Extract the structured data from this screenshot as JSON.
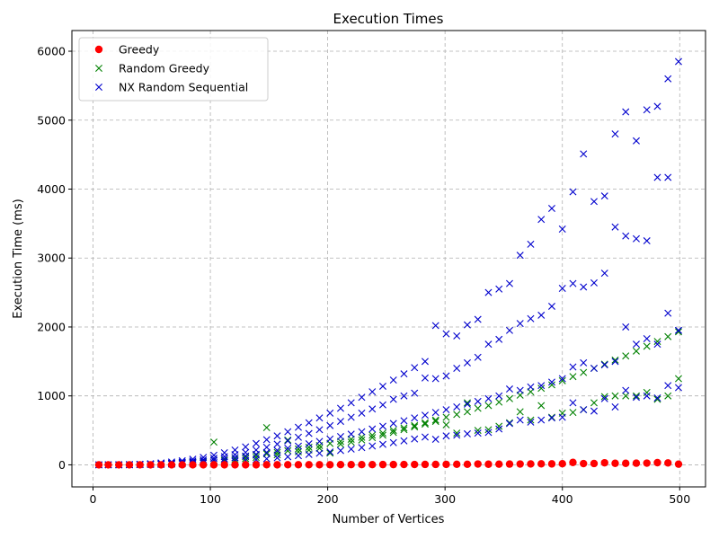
{
  "chart_data": {
    "type": "scatter",
    "title": "Execution Times",
    "xlabel": "Number of Vertices",
    "ylabel": "Execution Time (ms)",
    "xlim": [
      -18,
      522
    ],
    "ylim": [
      -320,
      6300
    ],
    "xticks": [
      0,
      100,
      200,
      300,
      400,
      500
    ],
    "yticks": [
      0,
      1000,
      2000,
      3000,
      4000,
      5000,
      6000
    ],
    "grid": true,
    "legend_position": "top-left",
    "x": [
      5,
      13,
      22,
      31,
      40,
      49,
      58,
      67,
      76,
      85,
      94,
      103,
      112,
      121,
      130,
      139,
      148,
      157,
      166,
      175,
      184,
      193,
      202,
      211,
      220,
      229,
      238,
      247,
      256,
      265,
      274,
      283,
      292,
      301,
      310,
      319,
      328,
      337,
      346,
      355,
      364,
      373,
      382,
      391,
      400,
      409,
      418,
      427,
      436,
      445,
      454,
      463,
      472,
      481,
      490,
      499
    ],
    "series": [
      {
        "name": "Greedy",
        "marker": "circle",
        "color": "#ff0000",
        "groups": [
          [
            0,
            0,
            0,
            0,
            0,
            0,
            0,
            0,
            0,
            0,
            0,
            1,
            1,
            1,
            1,
            1,
            2,
            1,
            2,
            2,
            2,
            2,
            2,
            3,
            3,
            3,
            3,
            4,
            4,
            5,
            5,
            6,
            6,
            7,
            8,
            8,
            12,
            9,
            10,
            11,
            12,
            13,
            15,
            14,
            16,
            35,
            18,
            19,
            30,
            22,
            22,
            24,
            25,
            32,
            28,
            10
          ]
        ]
      },
      {
        "name": "Random Greedy",
        "marker": "x",
        "color": "#008000",
        "groups": [
          [
            0,
            0,
            1,
            3,
            5,
            10,
            15,
            22,
            30,
            40,
            52,
            68,
            85,
            100,
            118,
            140,
            160,
            180,
            205,
            230,
            255,
            280,
            310,
            340,
            370,
            400,
            430,
            460,
            500,
            535,
            570,
            610,
            650,
            690,
            730,
            770,
            820,
            860,
            910,
            960,
            1010,
            1060,
            1110,
            1160,
            1220,
            1280,
            1340,
            1400,
            1460,
            1520,
            1580,
            1650,
            1720,
            1790,
            1860,
            1930
          ],
          [
            0,
            0,
            1,
            2,
            4,
            7,
            11,
            16,
            22,
            30,
            39,
            330,
            62,
            75,
            90,
            107,
            540,
            145,
            360,
            190,
            215,
            240,
            170,
            300,
            330,
            360,
            395,
            430,
            470,
            510,
            550,
            590,
            630,
            580,
            460,
            900,
            500,
            510,
            560,
            610,
            770,
            650,
            860,
            690,
            750,
            760,
            800,
            900,
            990,
            1000,
            1000,
            1000,
            1050,
            950,
            1000,
            1250
          ]
        ]
      },
      {
        "name": "NX Random Sequential",
        "marker": "x",
        "color": "#0000cd",
        "groups": [
          [
            0,
            1,
            2,
            5,
            10,
            18,
            28,
            42,
            60,
            82,
            108,
            140,
            175,
            215,
            260,
            310,
            365,
            420,
            480,
            545,
            610,
            680,
            750,
            820,
            900,
            980,
            1060,
            1140,
            1230,
            1320,
            1410,
            1500,
            2020,
            1900,
            1870,
            2030,
            2110,
            2500,
            2550,
            2630,
            3040,
            3200,
            3560,
            3720,
            3420,
            3960,
            4510,
            3820,
            3900,
            4800,
            5120,
            4700,
            5150,
            5200,
            5600,
            5850
          ],
          [
            0,
            1,
            1,
            3,
            6,
            11,
            18,
            28,
            40,
            55,
            73,
            95,
            120,
            148,
            180,
            215,
            255,
            300,
            348,
            400,
            455,
            510,
            570,
            630,
            690,
            750,
            810,
            870,
            950,
            1000,
            1040,
            1260,
            1250,
            1290,
            1400,
            1480,
            1560,
            1750,
            1820,
            1950,
            2050,
            2120,
            2170,
            2300,
            2560,
            2630,
            2580,
            2640,
            2780,
            3450,
            3320,
            3280,
            3250,
            4170,
            4170,
            1950
          ],
          [
            0,
            0,
            1,
            2,
            4,
            7,
            12,
            19,
            28,
            39,
            52,
            67,
            85,
            105,
            128,
            153,
            180,
            210,
            240,
            272,
            306,
            340,
            374,
            410,
            445,
            480,
            520,
            560,
            600,
            640,
            680,
            720,
            760,
            800,
            840,
            880,
            920,
            960,
            1000,
            1100,
            1080,
            1130,
            1150,
            1200,
            1250,
            1420,
            1480,
            1400,
            1450,
            1500,
            2000,
            1750,
            1830,
            1750,
            2200,
            1950
          ],
          [
            0,
            0,
            0,
            1,
            2,
            4,
            6,
            10,
            14,
            19,
            25,
            33,
            42,
            52,
            63,
            75,
            88,
            102,
            117,
            133,
            150,
            168,
            187,
            207,
            228,
            250,
            273,
            297,
            322,
            348,
            375,
            403,
            370,
            420,
            430,
            450,
            460,
            470,
            520,
            600,
            650,
            620,
            650,
            680,
            690,
            900,
            800,
            780,
            960,
            840,
            1080,
            980,
            1000,
            970,
            1150,
            1120
          ]
        ]
      }
    ]
  }
}
